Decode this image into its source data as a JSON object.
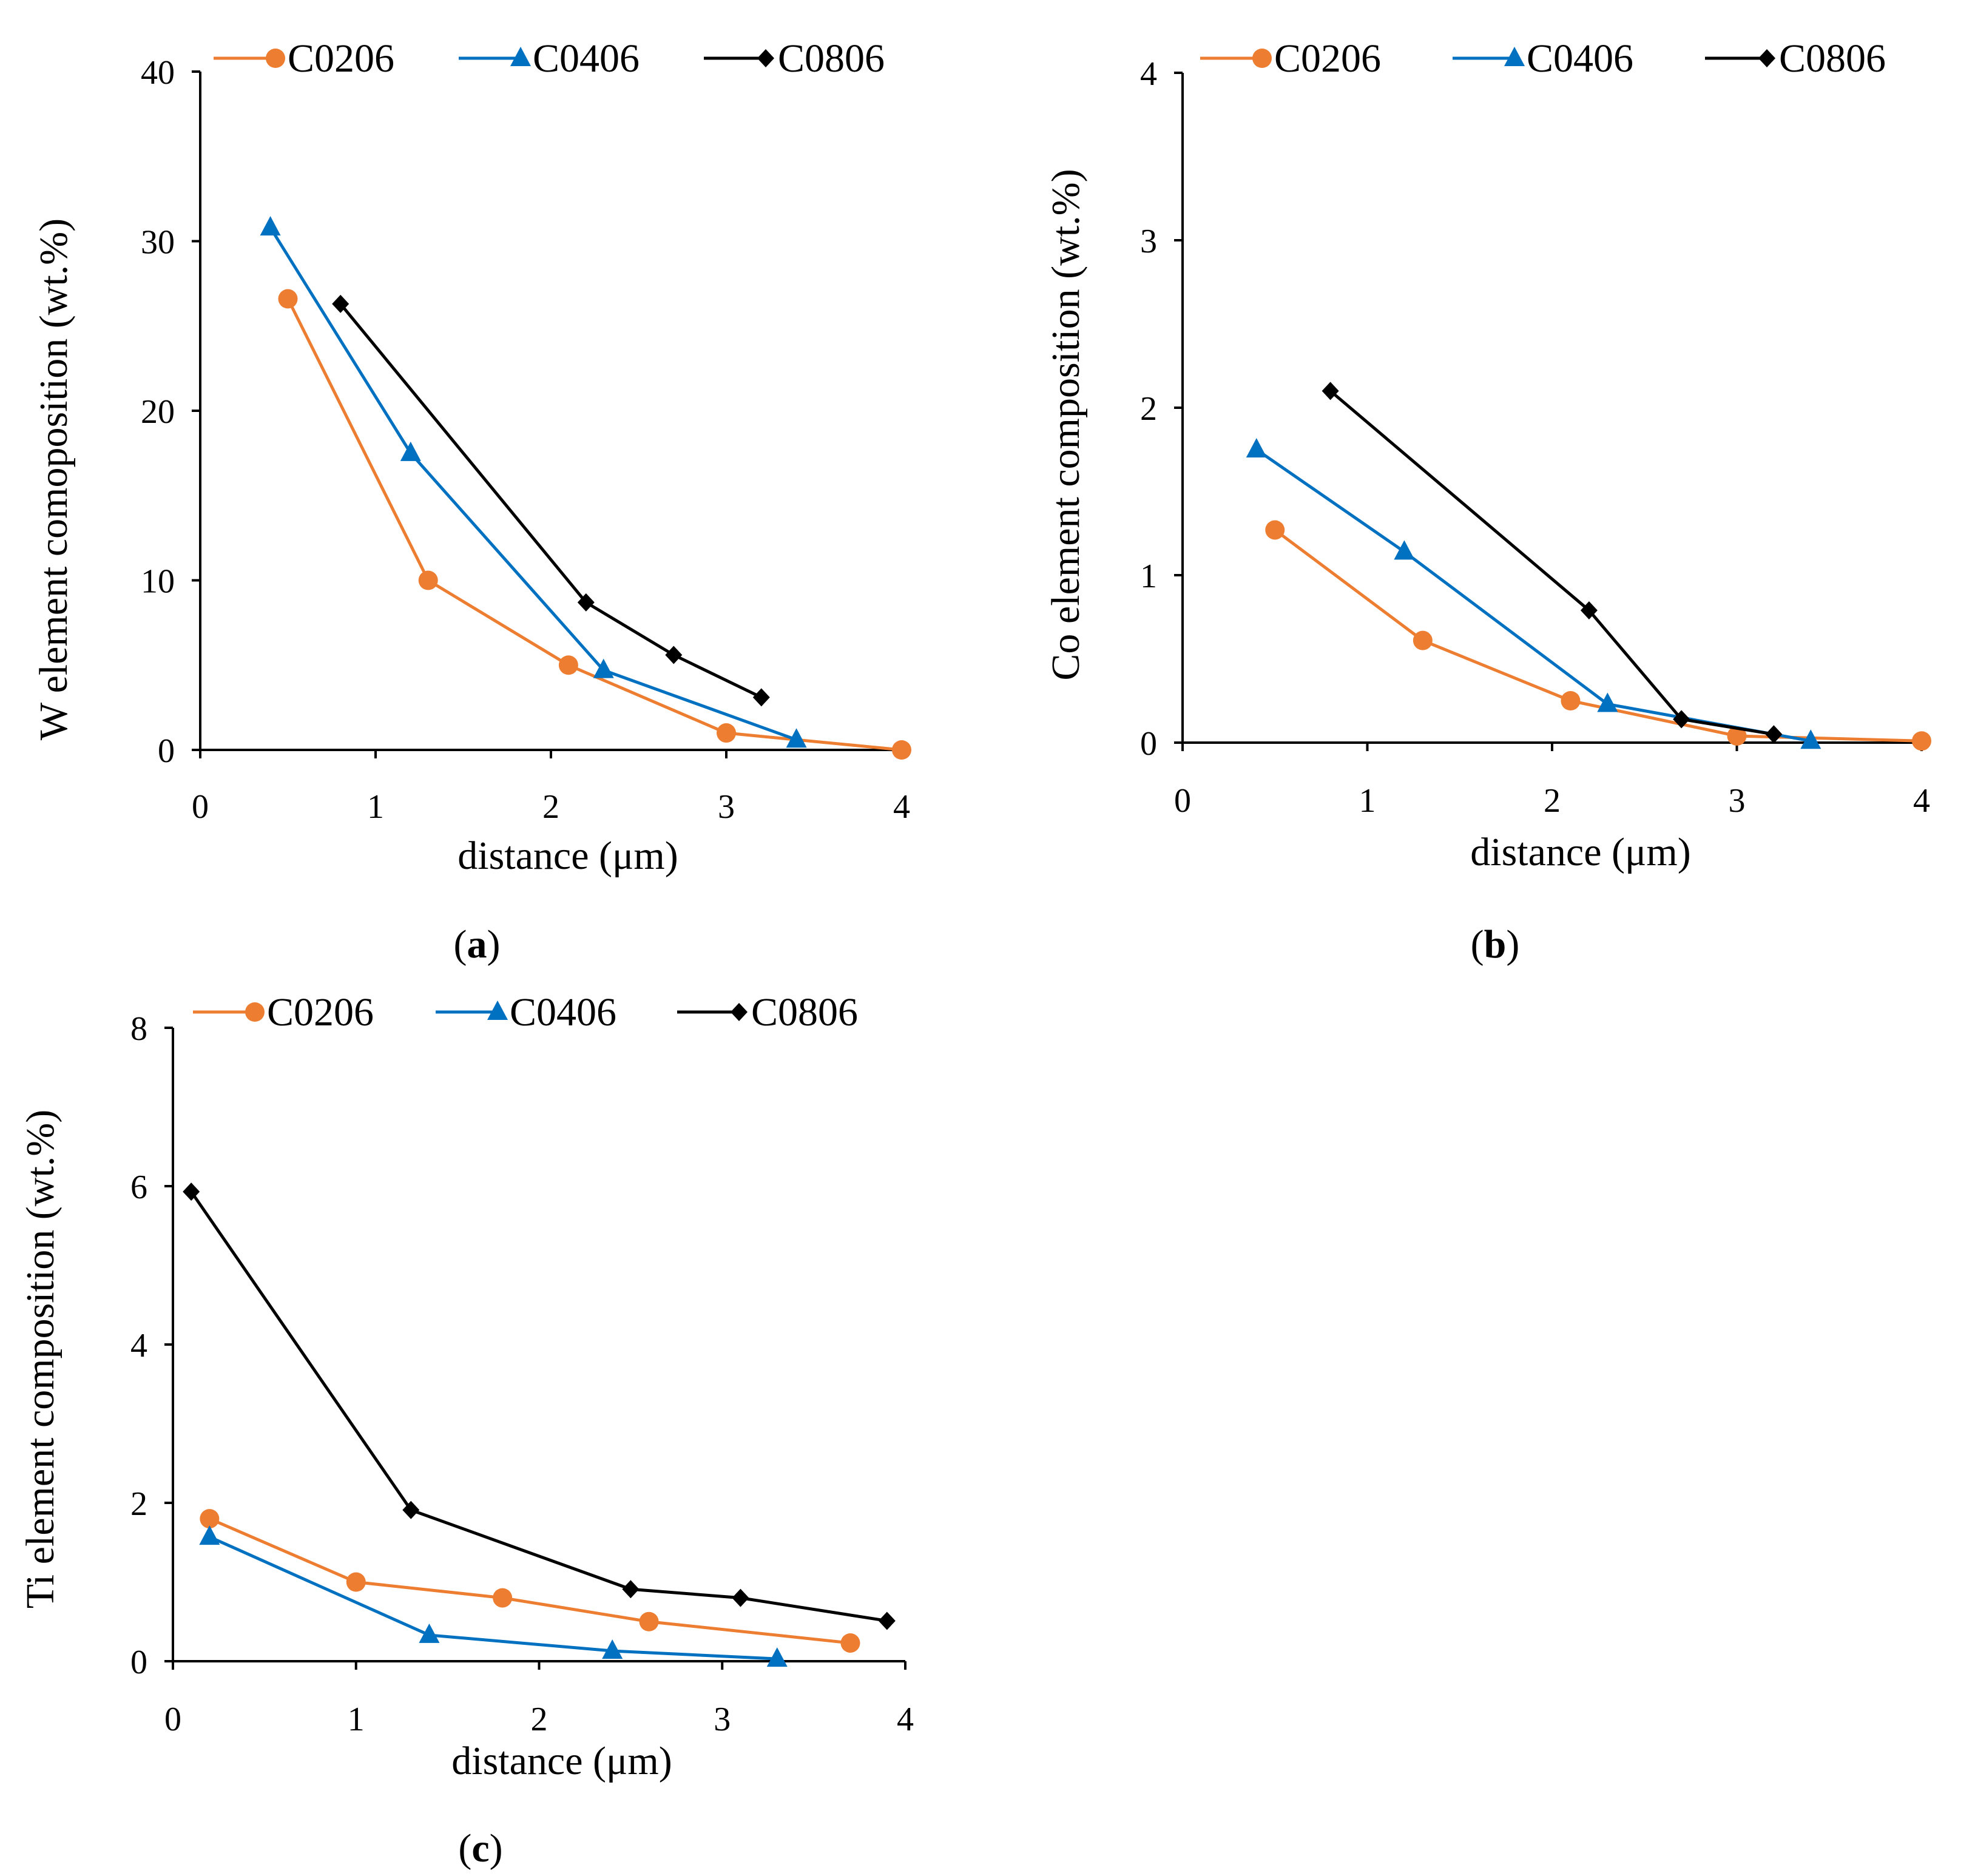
{
  "series_styles": [
    {
      "color": "#ED7D31",
      "marker": "circle"
    },
    {
      "color": "#0070C0",
      "marker": "triangle"
    },
    {
      "color": "#000000",
      "marker": "diamond"
    }
  ],
  "chart_data": [
    {
      "type": "line",
      "panel_label": "a",
      "xlabel": "distance (μm)",
      "ylabel": "W element comoposition (wt.%)",
      "xlim": [
        0,
        4
      ],
      "ylim": [
        0,
        40
      ],
      "xticks": [
        0,
        1,
        2,
        3,
        4
      ],
      "yticks": [
        0,
        10,
        20,
        30,
        40
      ],
      "grid": false,
      "legend": "top",
      "series": [
        {
          "name": "C0206",
          "x": [
            0.5,
            1.3,
            2.1,
            3.0,
            4.0
          ],
          "y": [
            26.6,
            10.0,
            5.0,
            1.0,
            0.0
          ]
        },
        {
          "name": "C0406",
          "x": [
            0.4,
            1.2,
            2.3,
            3.4
          ],
          "y": [
            30.8,
            17.5,
            4.7,
            0.6
          ]
        },
        {
          "name": "C0806",
          "x": [
            0.8,
            2.2,
            2.7,
            3.2
          ],
          "y": [
            26.3,
            8.7,
            5.6,
            3.1
          ]
        }
      ]
    },
    {
      "type": "line",
      "panel_label": "b",
      "xlabel": "distance (μm)",
      "ylabel": "Co element composition (wt.%)",
      "xlim": [
        0,
        4
      ],
      "ylim": [
        0,
        4
      ],
      "xticks": [
        0,
        1,
        2,
        3,
        4
      ],
      "yticks": [
        0,
        1,
        2,
        3,
        4
      ],
      "grid": false,
      "legend": "top",
      "series": [
        {
          "name": "C0206",
          "x": [
            0.5,
            1.3,
            2.1,
            3.0,
            4.0
          ],
          "y": [
            1.27,
            0.61,
            0.25,
            0.04,
            0.01
          ]
        },
        {
          "name": "C0406",
          "x": [
            0.4,
            1.2,
            2.3,
            3.4
          ],
          "y": [
            1.75,
            1.14,
            0.23,
            0.01
          ]
        },
        {
          "name": "C0806",
          "x": [
            0.8,
            2.2,
            2.7,
            3.2
          ],
          "y": [
            2.1,
            0.79,
            0.14,
            0.05
          ]
        }
      ]
    },
    {
      "type": "line",
      "panel_label": "c",
      "xlabel": "distance (μm)",
      "ylabel": "Ti element composition (wt.%)",
      "xlim": [
        0,
        4
      ],
      "ylim": [
        0,
        8
      ],
      "xticks": [
        0,
        1,
        2,
        3,
        4
      ],
      "yticks": [
        0,
        2,
        4,
        6,
        8
      ],
      "grid": false,
      "legend": "top",
      "series": [
        {
          "name": "C0206",
          "x": [
            0.2,
            1.0,
            1.8,
            2.6,
            3.7
          ],
          "y": [
            1.8,
            1.0,
            0.8,
            0.5,
            0.23
          ]
        },
        {
          "name": "C0406",
          "x": [
            0.2,
            1.4,
            2.4,
            3.3
          ],
          "y": [
            1.57,
            0.33,
            0.13,
            0.03
          ]
        },
        {
          "name": "C0806",
          "x": [
            0.1,
            1.3,
            2.5,
            3.1,
            3.9
          ],
          "y": [
            5.93,
            1.91,
            0.91,
            0.8,
            0.51
          ]
        }
      ]
    }
  ]
}
